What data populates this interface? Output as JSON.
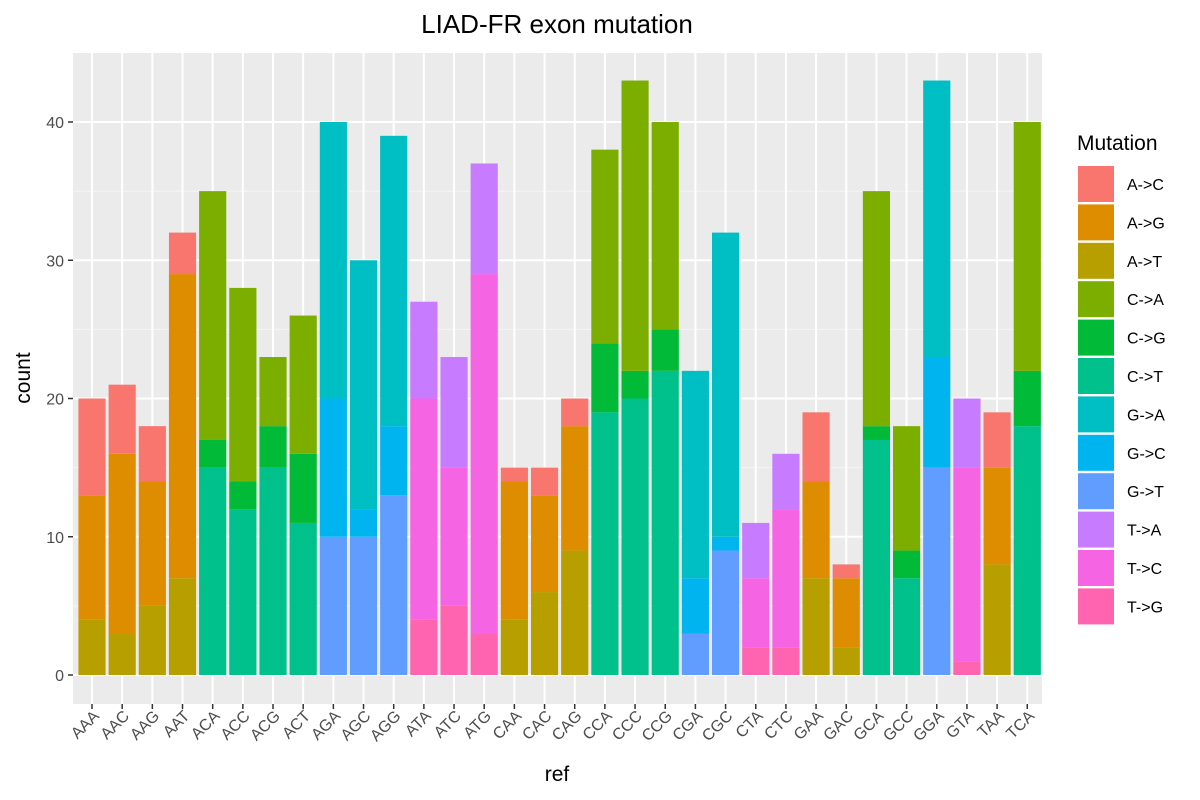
{
  "chart_data": {
    "type": "bar",
    "stacked": true,
    "title": "LIAD-FR exon mutation",
    "xlabel": "ref",
    "ylabel": "count",
    "ylim": [
      0,
      45
    ],
    "yticks": [
      0,
      10,
      20,
      30,
      40
    ],
    "grid": true,
    "legend_title": "Mutation",
    "legend_position": "right",
    "categories": [
      "AAA",
      "AAC",
      "AAG",
      "AAT",
      "ACA",
      "ACC",
      "ACG",
      "ACT",
      "AGA",
      "AGC",
      "AGG",
      "ATA",
      "ATC",
      "ATG",
      "CAA",
      "CAC",
      "CAG",
      "CCA",
      "CCC",
      "CCG",
      "CGA",
      "CGC",
      "CTA",
      "CTC",
      "GAA",
      "GAC",
      "GCA",
      "GCC",
      "GGA",
      "GTA",
      "TAA",
      "TCA"
    ],
    "series": [
      {
        "name": "A->C",
        "color": "#F8766D",
        "values": [
          7,
          5,
          4,
          3,
          0,
          0,
          0,
          0,
          0,
          0,
          0,
          0,
          0,
          0,
          1,
          2,
          2,
          0,
          0,
          0,
          0,
          0,
          0,
          0,
          5,
          1,
          0,
          0,
          0,
          0,
          4,
          0
        ]
      },
      {
        "name": "A->G",
        "color": "#DE8C00",
        "values": [
          9,
          13,
          9,
          22,
          0,
          0,
          0,
          0,
          0,
          0,
          0,
          0,
          0,
          0,
          10,
          7,
          9,
          0,
          0,
          0,
          0,
          0,
          0,
          0,
          7,
          5,
          0,
          0,
          0,
          0,
          7,
          0
        ]
      },
      {
        "name": "A->T",
        "color": "#B79F00",
        "values": [
          4,
          3,
          5,
          7,
          0,
          0,
          0,
          0,
          0,
          0,
          0,
          0,
          0,
          0,
          4,
          6,
          9,
          0,
          0,
          0,
          0,
          0,
          0,
          0,
          7,
          2,
          0,
          0,
          0,
          0,
          8,
          0
        ]
      },
      {
        "name": "C->A",
        "color": "#7CAE00",
        "values": [
          0,
          0,
          0,
          0,
          18,
          14,
          5,
          10,
          0,
          0,
          0,
          0,
          0,
          0,
          0,
          0,
          0,
          14,
          21,
          15,
          0,
          0,
          0,
          0,
          0,
          0,
          17,
          9,
          0,
          0,
          0,
          18
        ]
      },
      {
        "name": "C->G",
        "color": "#00BA38",
        "values": [
          0,
          0,
          0,
          0,
          2,
          2,
          3,
          5,
          0,
          0,
          0,
          0,
          0,
          0,
          0,
          0,
          0,
          5,
          2,
          3,
          0,
          0,
          0,
          0,
          0,
          0,
          1,
          2,
          0,
          0,
          0,
          4
        ]
      },
      {
        "name": "C->T",
        "color": "#00C08B",
        "values": [
          0,
          0,
          0,
          0,
          15,
          12,
          15,
          11,
          0,
          0,
          0,
          0,
          0,
          0,
          0,
          0,
          0,
          19,
          20,
          22,
          0,
          0,
          0,
          0,
          0,
          0,
          17,
          7,
          0,
          0,
          0,
          18
        ]
      },
      {
        "name": "G->A",
        "color": "#00BFC4",
        "values": [
          0,
          0,
          0,
          0,
          0,
          0,
          0,
          0,
          20,
          18,
          21,
          0,
          0,
          0,
          0,
          0,
          0,
          0,
          0,
          0,
          15,
          22,
          0,
          0,
          0,
          0,
          0,
          0,
          20,
          0,
          0,
          0
        ]
      },
      {
        "name": "G->C",
        "color": "#00B4F0",
        "values": [
          0,
          0,
          0,
          0,
          0,
          0,
          0,
          0,
          10,
          2,
          5,
          0,
          0,
          0,
          0,
          0,
          0,
          0,
          0,
          0,
          4,
          1,
          0,
          0,
          0,
          0,
          0,
          0,
          8,
          0,
          0,
          0
        ]
      },
      {
        "name": "G->T",
        "color": "#619CFF",
        "values": [
          0,
          0,
          0,
          0,
          0,
          0,
          0,
          0,
          10,
          10,
          13,
          0,
          0,
          0,
          0,
          0,
          0,
          0,
          0,
          0,
          3,
          9,
          0,
          0,
          0,
          0,
          0,
          0,
          15,
          0,
          0,
          0
        ]
      },
      {
        "name": "T->A",
        "color": "#C77CFF",
        "values": [
          0,
          0,
          0,
          0,
          0,
          0,
          0,
          0,
          0,
          0,
          0,
          7,
          8,
          8,
          0,
          0,
          0,
          0,
          0,
          0,
          0,
          0,
          4,
          4,
          0,
          0,
          0,
          0,
          0,
          5,
          0,
          0
        ]
      },
      {
        "name": "T->C",
        "color": "#F564E3",
        "values": [
          0,
          0,
          0,
          0,
          0,
          0,
          0,
          0,
          0,
          0,
          0,
          16,
          10,
          26,
          0,
          0,
          0,
          0,
          0,
          0,
          0,
          0,
          5,
          10,
          0,
          0,
          0,
          0,
          0,
          14,
          0,
          0
        ]
      },
      {
        "name": "T->G",
        "color": "#FF64B0",
        "values": [
          0,
          0,
          0,
          0,
          0,
          0,
          0,
          0,
          0,
          0,
          0,
          4,
          5,
          3,
          0,
          0,
          0,
          0,
          0,
          0,
          0,
          0,
          2,
          2,
          0,
          0,
          0,
          0,
          0,
          1,
          0,
          0
        ]
      }
    ]
  },
  "colors": {
    "panel_background": "#EBEBEB",
    "grid_major": "#FFFFFF",
    "grid_minor": "#F5F5F5"
  }
}
